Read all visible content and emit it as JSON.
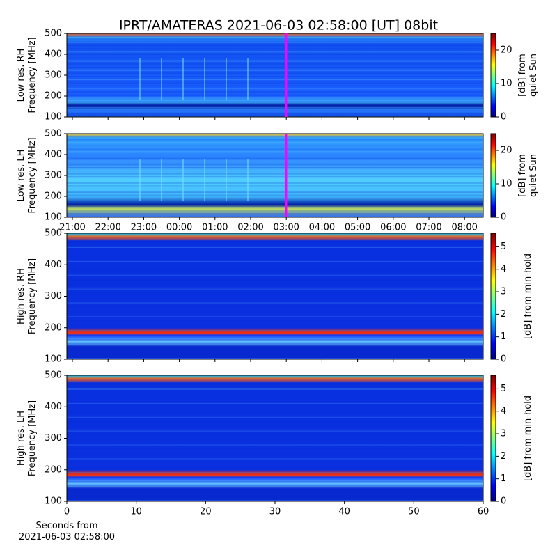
{
  "title": "IPRT/AMATERAS 2021-06-03 02:58:00 [UT]   08bit",
  "chart_data": [
    {
      "type": "heatmap",
      "ylabel": [
        "Low res. RH",
        "Frequency [MHz]"
      ],
      "ylim": [
        100,
        500
      ],
      "yticks": [
        100,
        200,
        300,
        400,
        500
      ],
      "marker": "03:00",
      "clim": [
        0,
        25
      ],
      "cticks": [
        0,
        10,
        20
      ],
      "colorbar_label": [
        "[dB] from",
        "quiet Sun"
      ],
      "colormap": "jet"
    },
    {
      "type": "heatmap",
      "ylabel": [
        "Low res. LH",
        "Frequency [MHz]"
      ],
      "ylim": [
        100,
        500
      ],
      "yticks": [
        100,
        200,
        300,
        400,
        500
      ],
      "categories": [
        "21:00",
        "22:00",
        "23:00",
        "00:00",
        "01:00",
        "02:00",
        "03:00",
        "04:00",
        "05:00",
        "06:00",
        "07:00",
        "08:00"
      ],
      "marker": "03:00",
      "clim": [
        0,
        25
      ],
      "cticks": [
        0,
        10,
        20
      ],
      "colorbar_label": [
        "[dB] from",
        "quiet Sun"
      ],
      "colormap": "jet"
    },
    {
      "type": "heatmap",
      "ylabel": [
        "High res. RH",
        "Frequency [MHz]"
      ],
      "ylim": [
        100,
        500
      ],
      "yticks": [
        100,
        200,
        300,
        400,
        500
      ],
      "clim": [
        0,
        5.6
      ],
      "cticks": [
        0,
        1,
        2,
        3,
        4,
        5
      ],
      "colorbar_label": [
        "[dB] from min-hold"
      ],
      "colormap": "jet"
    },
    {
      "type": "heatmap",
      "ylabel": [
        "High res. LH",
        "Frequency [MHz]"
      ],
      "ylim": [
        100,
        500
      ],
      "yticks": [
        100,
        200,
        300,
        400,
        500
      ],
      "xlim": [
        0,
        60
      ],
      "xticks": [
        0,
        10,
        20,
        30,
        40,
        50,
        60
      ],
      "xlabel": [
        "Seconds from",
        "2021-06-03 02:58:00"
      ],
      "clim": [
        0,
        5.6
      ],
      "cticks": [
        0,
        1,
        2,
        3,
        4,
        5
      ],
      "colorbar_label": [
        "[dB] from min-hold"
      ],
      "colormap": "jet"
    }
  ]
}
